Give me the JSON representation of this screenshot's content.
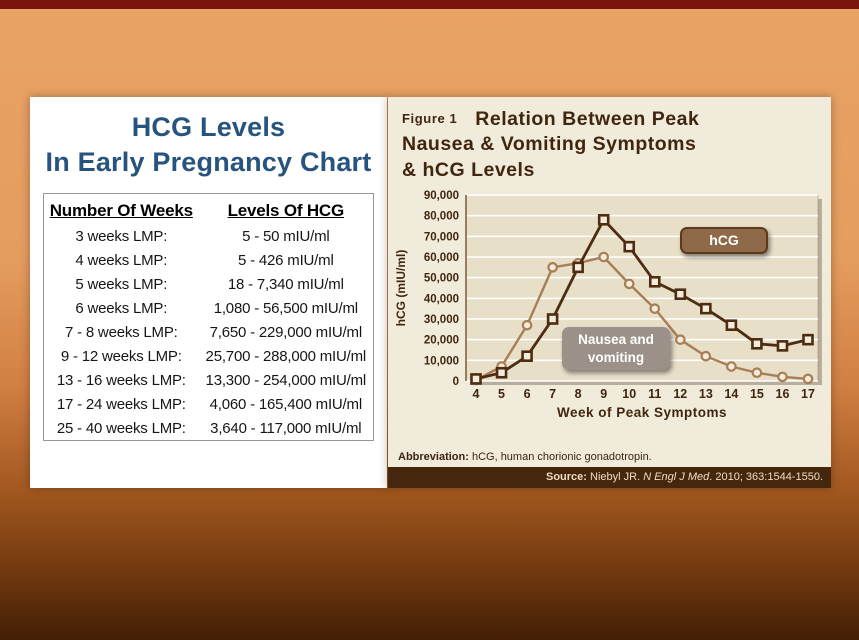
{
  "slide": {
    "top_strip_color": "#7a140c"
  },
  "left_panel": {
    "title_line1": "HCG Levels",
    "title_line2": "In Early Pregnancy Chart",
    "title_color": "#27537f",
    "table": {
      "headers": [
        "Number Of Weeks",
        "Levels Of HCG"
      ],
      "rows": [
        {
          "weeks": "3 weeks LMP:",
          "level": "5 - 50 mIU/ml"
        },
        {
          "weeks": "4 weeks LMP:",
          "level": "5 - 426 mIU/ml"
        },
        {
          "weeks": "5 weeks LMP:",
          "level": "18 - 7,340 mIU/ml"
        },
        {
          "weeks": "6 weeks LMP:",
          "level": "1,080 - 56,500 mIU/ml"
        },
        {
          "weeks": "7 - 8 weeks LMP:",
          "level": "7,650 - 229,000 mIU/ml"
        },
        {
          "weeks": "9 - 12 weeks LMP:",
          "level": "25,700 - 288,000 mIU/ml"
        },
        {
          "weeks": "13 - 16 weeks LMP:",
          "level": "13,300 - 254,000 mIU/ml"
        },
        {
          "weeks": "17 - 24 weeks LMP:",
          "level": "4,060 - 165,400 mIU/ml"
        },
        {
          "weeks": "25 - 40 weeks LMP:",
          "level": "3,640 - 117,000 mIU/ml"
        }
      ]
    }
  },
  "right_panel": {
    "figure_label": "Figure 1",
    "title_line1": "Relation Between Peak",
    "title_line2": "Nausea & Vomiting Symptoms",
    "title_line3": "& hCG Levels",
    "footer": {
      "abbreviation_label": "Abbreviation:",
      "abbreviation_text": " hCG, human chorionic gonadotropin.",
      "source_label": "Source:",
      "source_pre": " Niebyl JR. ",
      "source_journal": "N Engl J Med",
      "source_post": ". 2010; 363:1544-1550."
    }
  },
  "chart_data": {
    "type": "line",
    "title": "Relation Between Peak Nausea & Vomiting Symptoms & hCG Levels",
    "xlabel": "Week of Peak Symptoms",
    "ylabel": "hCG (mIU/ml)",
    "x": [
      4,
      5,
      6,
      7,
      8,
      9,
      10,
      11,
      12,
      13,
      14,
      15,
      16,
      17
    ],
    "ylim": [
      0,
      90000
    ],
    "ytick_step": 10000,
    "ytick_labels": [
      "0",
      "10,000",
      "20,000",
      "30,000",
      "40,000",
      "50,000",
      "60,000",
      "70,000",
      "80,000",
      "90,000"
    ],
    "grid": true,
    "legend_position": "inside-plot",
    "series": [
      {
        "name": "hCG",
        "marker": "square",
        "color": "#4e2c11",
        "values": [
          1000,
          4000,
          12000,
          30000,
          55000,
          78000,
          65000,
          48000,
          42000,
          35000,
          27000,
          18000,
          17000,
          20000
        ]
      },
      {
        "name": "Nausea and vomiting",
        "marker": "circle",
        "color": "#a87e55",
        "values": [
          500,
          7000,
          27000,
          55000,
          57000,
          60000,
          47000,
          35000,
          20000,
          12000,
          7000,
          4000,
          2000,
          1000
        ]
      }
    ],
    "legend": {
      "hcg": "hCG",
      "nausea": "Nausea and vomiting"
    }
  }
}
